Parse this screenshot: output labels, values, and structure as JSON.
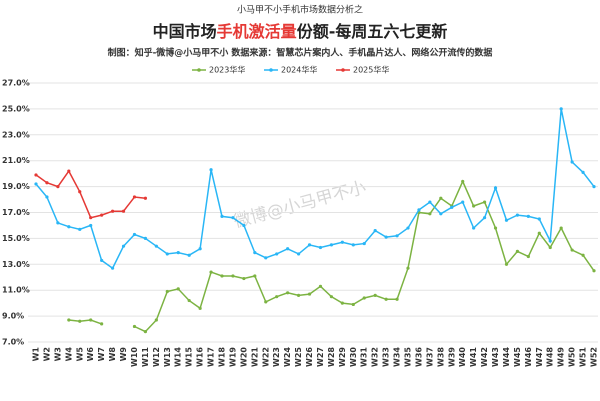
{
  "chart_data": {
    "type": "line",
    "kicker": "小马甲不小手机市场数据分析之",
    "title": [
      "中国市场",
      "手机激活量",
      "份额-每周五六七更新"
    ],
    "subtitle": "制图：知乎-微博@小马甲不小   数据来源：智慧芯片案内人、手机晶片达人、网络公开流传的数据",
    "watermark": "微博@小马甲不小",
    "categories": [
      "W1",
      "W2",
      "W3",
      "W4",
      "W5",
      "W6",
      "W7",
      "W8",
      "W9",
      "W10",
      "W11",
      "W12",
      "W13",
      "W14",
      "W15",
      "W16",
      "W17",
      "W18",
      "W19",
      "W20",
      "W21",
      "W22",
      "W23",
      "W24",
      "W25",
      "W26",
      "W27",
      "W28",
      "W29",
      "W30",
      "W31",
      "W32",
      "W33",
      "W34",
      "W35",
      "W36",
      "W37",
      "W38",
      "W39",
      "W40",
      "W41",
      "W42",
      "W43",
      "W44",
      "W45",
      "W46",
      "W47",
      "W48",
      "W49",
      "W50",
      "W51",
      "W52"
    ],
    "series": [
      {
        "name": "2023华华",
        "color": "#7cb342",
        "values": [
          null,
          null,
          null,
          8.7,
          8.6,
          8.7,
          8.4,
          null,
          null,
          8.2,
          7.8,
          8.7,
          10.9,
          11.1,
          10.2,
          9.6,
          12.4,
          12.1,
          12.1,
          11.9,
          12.1,
          10.1,
          10.5,
          10.8,
          10.6,
          10.7,
          11.3,
          10.5,
          10.0,
          9.9,
          10.4,
          10.6,
          10.3,
          10.3,
          12.7,
          17.0,
          16.9,
          18.1,
          17.5,
          19.4,
          17.5,
          17.8,
          15.8,
          13.0,
          14.0,
          13.6,
          15.4,
          14.3,
          15.8,
          14.1,
          13.7,
          12.5
        ]
      },
      {
        "name": "2024华华",
        "color": "#29b6f6",
        "values": [
          19.2,
          18.2,
          16.2,
          15.9,
          15.7,
          16.0,
          13.3,
          12.7,
          14.4,
          15.3,
          15.0,
          14.4,
          13.8,
          13.9,
          13.7,
          14.2,
          20.3,
          16.7,
          16.6,
          16.0,
          13.9,
          13.5,
          13.8,
          14.2,
          13.8,
          14.5,
          14.3,
          14.5,
          14.7,
          14.5,
          14.6,
          15.6,
          15.1,
          15.2,
          15.8,
          17.2,
          17.8,
          16.9,
          17.4,
          17.8,
          15.8,
          16.6,
          18.9,
          16.4,
          16.8,
          16.7,
          16.5,
          14.8,
          25.0,
          20.9,
          20.1,
          19.0
        ]
      },
      {
        "name": "2025华华",
        "color": "#e53935",
        "values": [
          19.9,
          19.3,
          19.0,
          20.2,
          18.6,
          16.6,
          16.8,
          17.1,
          17.1,
          18.2,
          18.1,
          null,
          null,
          null,
          null,
          null,
          null,
          null,
          null,
          null,
          null,
          null,
          null,
          null,
          null,
          null,
          null,
          null,
          null,
          null,
          null,
          null,
          null,
          null,
          null,
          null,
          null,
          null,
          null,
          null,
          null,
          null,
          null,
          null,
          null,
          null,
          null,
          null,
          null,
          null,
          null,
          null
        ]
      }
    ],
    "ylim": [
      7,
      27
    ],
    "yticks": [
      {
        "value": 7,
        "label": "7.0%"
      },
      {
        "value": 9,
        "label": "9.0%"
      },
      {
        "value": 11,
        "label": "11.0%"
      },
      {
        "value": 13,
        "label": "13.0%"
      },
      {
        "value": 15,
        "label": "15.0%"
      },
      {
        "value": 17,
        "label": "17.0%"
      },
      {
        "value": 19,
        "label": "19.0%"
      },
      {
        "value": 21,
        "label": "21.0%"
      },
      {
        "value": 23,
        "label": "23.0%"
      },
      {
        "value": 25,
        "label": "25.0%"
      },
      {
        "value": 27,
        "label": "27.0%"
      }
    ],
    "grid": true
  }
}
